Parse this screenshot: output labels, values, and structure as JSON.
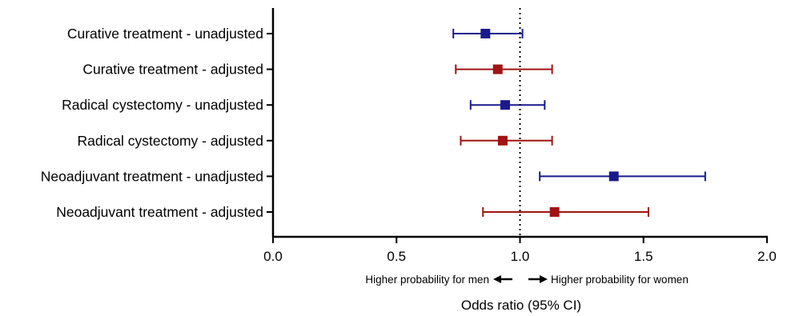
{
  "chart_data": {
    "type": "forest",
    "xlabel": "Odds ratio (95% CI)",
    "xlim": [
      0.0,
      2.0
    ],
    "xticks": [
      "0.0",
      "0.5",
      "1.0",
      "1.5",
      "2.0"
    ],
    "reference_line": 1.0,
    "annotations": {
      "left": "Higher probability for men",
      "right": "Higher probability for women"
    },
    "rows": [
      {
        "label": "Curative treatment - unadjusted",
        "or": 0.86,
        "ci_low": 0.73,
        "ci_high": 1.01,
        "color": "#1a1a8c"
      },
      {
        "label": "Curative treatment - adjusted",
        "or": 0.91,
        "ci_low": 0.74,
        "ci_high": 1.13,
        "color": "#a01414"
      },
      {
        "label": "Radical cystectomy - unadjusted",
        "or": 0.94,
        "ci_low": 0.8,
        "ci_high": 1.1,
        "color": "#1a1a8c"
      },
      {
        "label": "Radical cystectomy - adjusted",
        "or": 0.93,
        "ci_low": 0.76,
        "ci_high": 1.13,
        "color": "#a01414"
      },
      {
        "label": "Neoadjuvant treatment - unadjusted",
        "or": 1.38,
        "ci_low": 1.08,
        "ci_high": 1.75,
        "color": "#1a1a8c"
      },
      {
        "label": "Neoadjuvant treatment - adjusted",
        "or": 1.14,
        "ci_low": 0.85,
        "ci_high": 1.52,
        "color": "#a01414"
      }
    ]
  }
}
